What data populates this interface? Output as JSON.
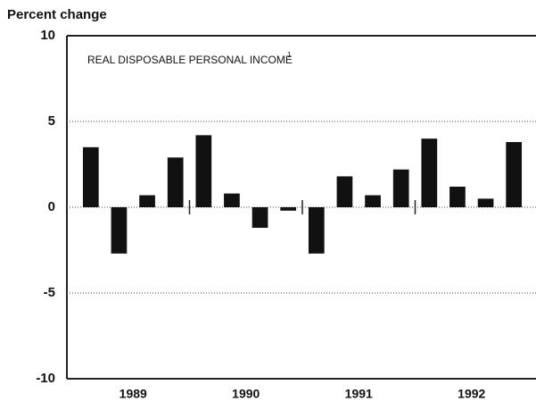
{
  "chart_data": {
    "type": "bar",
    "y_label": "Percent change",
    "title": "REAL DISPOSABLE PERSONAL INCOME",
    "title_note": "1",
    "years": [
      "1989",
      "1990",
      "1991",
      "1992"
    ],
    "values": [
      3.5,
      -2.7,
      0.7,
      2.9,
      4.2,
      0.8,
      -1.2,
      -0.2,
      -2.7,
      1.8,
      0.7,
      2.2,
      4.0,
      1.2,
      0.5,
      3.8
    ],
    "color": "#111111",
    "ylim": [
      -10,
      10
    ],
    "yticks": [
      10,
      5,
      0,
      -5,
      -10
    ],
    "grid": true
  }
}
